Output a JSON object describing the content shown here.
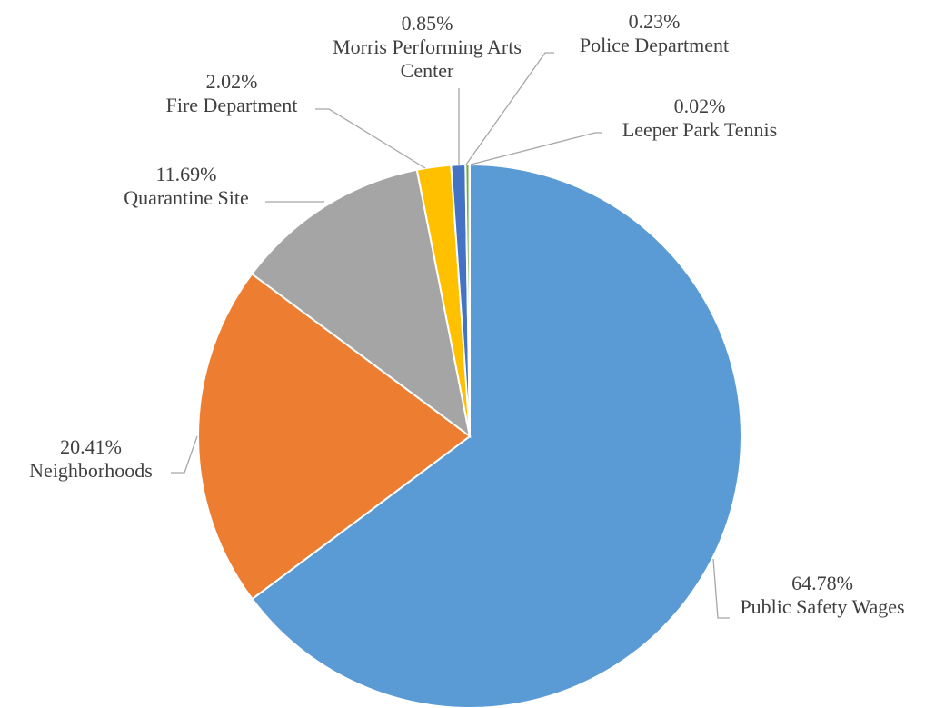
{
  "chart_data": {
    "type": "pie",
    "categories": [
      "Public Safety Wages",
      "Neighborhoods",
      "Quarantine Site",
      "Fire Department",
      "Morris Performing Arts Center",
      "Police Department",
      "Leeper Park Tennis"
    ],
    "values": [
      64.78,
      20.41,
      11.69,
      2.02,
      0.85,
      0.23,
      0.02
    ],
    "value_labels": [
      "64.78%",
      "20.41%",
      "11.69%",
      "2.02%",
      "0.85%",
      "0.23%",
      "0.02%"
    ],
    "colors": [
      "#5b9bd5",
      "#ed7d31",
      "#a5a5a5",
      "#ffc000",
      "#4472c4",
      "#70ad47",
      "#264478"
    ]
  }
}
